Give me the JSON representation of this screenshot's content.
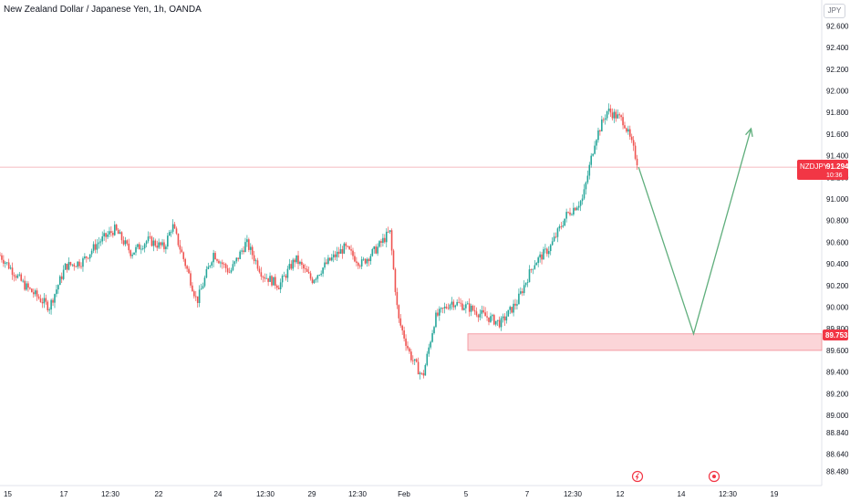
{
  "header": {
    "title": "New Zealand Dollar / Japanese Yen, 1h, OANDA",
    "currency": "JPY"
  },
  "price_tag": {
    "symbol": "NZDJPY",
    "price": "91.294",
    "countdown": "10:36"
  },
  "level_tag": {
    "price": "89.753"
  },
  "colors": {
    "up": "#26a69a",
    "down": "#ef5350",
    "arrow": "#5fae7c",
    "zone_fill": "#fbd5d8",
    "zone_border": "#f28b95",
    "price_line": "#f3a5ab",
    "tag_bg": "#f23645",
    "axis_text": "#131722"
  },
  "chart_data": {
    "type": "candlestick",
    "title": "New Zealand Dollar / Japanese Yen, 1h, OANDA",
    "y_axis": {
      "ticks": [
        "92.600",
        "92.400",
        "92.200",
        "92.000",
        "91.800",
        "91.600",
        "91.400",
        "91.200",
        "91.000",
        "90.800",
        "90.600",
        "90.400",
        "90.200",
        "90.000",
        "89.800",
        "89.600",
        "89.400",
        "89.200",
        "89.000",
        "88.840",
        "88.640",
        "88.480"
      ],
      "range": [
        88.48,
        92.64
      ]
    },
    "x_axis": {
      "ticks": [
        "15",
        "17",
        "12:30",
        "22",
        "24",
        "12:30",
        "29",
        "12:30",
        "Feb",
        "5",
        "7",
        "12:30",
        "12",
        "14",
        "12:30",
        "19"
      ],
      "domain": [
        0,
        100
      ]
    },
    "price_path": [
      [
        0,
        90.48
      ],
      [
        3,
        90.2
      ],
      [
        6,
        90.0
      ],
      [
        8,
        90.38
      ],
      [
        10,
        90.42
      ],
      [
        12,
        90.6
      ],
      [
        14,
        90.72
      ],
      [
        16,
        90.5
      ],
      [
        18,
        90.62
      ],
      [
        20,
        90.55
      ],
      [
        21,
        90.76
      ],
      [
        23,
        90.3
      ],
      [
        24,
        90.05
      ],
      [
        26,
        90.5
      ],
      [
        28,
        90.32
      ],
      [
        30,
        90.6
      ],
      [
        32,
        90.3
      ],
      [
        34,
        90.2
      ],
      [
        36,
        90.45
      ],
      [
        38,
        90.25
      ],
      [
        40,
        90.42
      ],
      [
        42,
        90.55
      ],
      [
        44,
        90.4
      ],
      [
        46,
        90.55
      ],
      [
        47.5,
        90.7
      ],
      [
        48.5,
        89.9
      ],
      [
        50,
        89.55
      ],
      [
        51.5,
        89.35
      ],
      [
        53,
        89.9
      ],
      [
        55,
        90.05
      ],
      [
        57,
        90.0
      ],
      [
        59,
        89.92
      ],
      [
        61,
        89.85
      ],
      [
        63,
        90.05
      ],
      [
        65,
        90.4
      ],
      [
        67,
        90.55
      ],
      [
        69,
        90.85
      ],
      [
        71,
        91.0
      ],
      [
        72.5,
        91.55
      ],
      [
        74,
        91.82
      ],
      [
        76,
        91.72
      ],
      [
        77,
        91.5
      ],
      [
        77.8,
        91.3
      ]
    ],
    "annotations": {
      "last_price": 91.294,
      "support_zone": {
        "top": 89.753,
        "bottom": 89.6,
        "x_start": 57,
        "x_end": 100
      },
      "projection": [
        [
          77.8,
          91.294
        ],
        [
          84.5,
          89.753
        ],
        [
          91.5,
          91.65
        ]
      ]
    }
  }
}
